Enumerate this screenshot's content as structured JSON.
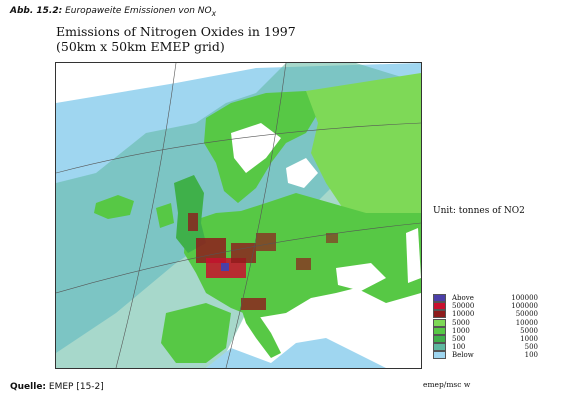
{
  "caption": {
    "label": "Abb. 15.2:",
    "text": "Europaweite Emissionen von NO",
    "subscript": "x"
  },
  "map": {
    "title_line1": "Emissions of Nitrogen Oxides in 1997",
    "title_line2": "(50km x 50km EMEP grid)",
    "unit": "Unit: tonnes of NO2"
  },
  "legend": [
    {
      "low": "Above",
      "high": "100000",
      "color": "#4b3fa8"
    },
    {
      "low": "50000",
      "high": "100000",
      "color": "#c8102e"
    },
    {
      "low": "10000",
      "high": "50000",
      "color": "#8e1c1c"
    },
    {
      "low": "5000",
      "high": "10000",
      "color": "#7ed957"
    },
    {
      "low": "1000",
      "high": "5000",
      "color": "#57c845"
    },
    {
      "low": "500",
      "high": "1000",
      "color": "#3fb04a"
    },
    {
      "low": "100",
      "high": "500",
      "color": "#5fb8a0"
    },
    {
      "low": "Below",
      "high": "100",
      "color": "#9fd6f0"
    }
  ],
  "footer": {
    "source_label": "Quelle:",
    "source_text": "EMEP [15-2]",
    "credit": "emep/msc w"
  }
}
